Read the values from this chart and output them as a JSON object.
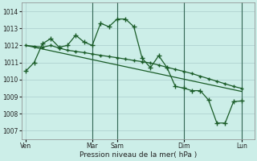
{
  "background_color": "#cceee8",
  "grid_color": "#aacccc",
  "line_color": "#1a5c28",
  "ylim": [
    1006.5,
    1014.5
  ],
  "yticks": [
    1007,
    1008,
    1009,
    1010,
    1011,
    1012,
    1013,
    1014
  ],
  "xlabel": "Pression niveau de la mer( hPa )",
  "xtick_labels": [
    "Ven",
    "Mar",
    "Sam",
    "Dim",
    "Lun"
  ],
  "xtick_positions": [
    0,
    8,
    11,
    19,
    26
  ],
  "xlim": [
    -0.5,
    27.5
  ],
  "series1_x": [
    0,
    1,
    2,
    3,
    4,
    5,
    6,
    7,
    8,
    9,
    10,
    11,
    12,
    13,
    14,
    15,
    16,
    17,
    18,
    19,
    20,
    21,
    22,
    23,
    24,
    25,
    26
  ],
  "series1_y": [
    1010.5,
    1011.0,
    1012.1,
    1012.4,
    1011.9,
    1012.0,
    1012.6,
    1012.2,
    1012.0,
    1013.3,
    1013.1,
    1013.55,
    1013.55,
    1013.1,
    1011.25,
    1010.7,
    1011.4,
    1010.7,
    1009.6,
    1009.5,
    1009.35,
    1009.35,
    1008.8,
    1007.45,
    1007.45,
    1008.7,
    1008.75
  ],
  "series2_x": [
    0,
    1,
    2,
    3,
    4,
    5,
    6,
    7,
    8,
    9,
    10,
    11,
    12,
    13,
    14,
    15,
    16,
    17,
    18,
    19,
    20,
    21,
    22,
    23,
    24,
    25,
    26
  ],
  "series2_y": [
    1012.0,
    1011.95,
    1011.9,
    1012.0,
    1011.85,
    1011.72,
    1011.65,
    1011.58,
    1011.5,
    1011.42,
    1011.35,
    1011.28,
    1011.2,
    1011.12,
    1011.05,
    1010.97,
    1010.85,
    1010.72,
    1010.6,
    1010.48,
    1010.35,
    1010.2,
    1010.05,
    1009.9,
    1009.75,
    1009.6,
    1009.48
  ],
  "trend_x": [
    0,
    26
  ],
  "trend_y": [
    1012.0,
    1009.3
  ],
  "vline_positions": [
    8,
    11,
    19,
    26
  ],
  "marker_size": 2,
  "linewidth": 0.9,
  "fig_width": 3.2,
  "fig_height": 2.0,
  "dpi": 100
}
